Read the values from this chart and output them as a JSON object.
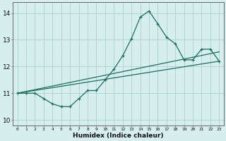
{
  "xlabel": "Humidex (Indice chaleur)",
  "xlim": [
    -0.5,
    23.5
  ],
  "ylim": [
    9.8,
    14.4
  ],
  "xticks": [
    0,
    1,
    2,
    3,
    4,
    5,
    6,
    7,
    8,
    9,
    10,
    11,
    12,
    13,
    14,
    15,
    16,
    17,
    18,
    19,
    20,
    21,
    22,
    23
  ],
  "yticks": [
    10,
    11,
    12,
    13,
    14
  ],
  "background_color": "#d6eeee",
  "grid_color": "#b0d4d4",
  "line_color": "#1a6e5e",
  "data_x": [
    0,
    1,
    2,
    3,
    4,
    5,
    6,
    7,
    8,
    9,
    10,
    11,
    12,
    13,
    14,
    15,
    16,
    17,
    18,
    19,
    20,
    21,
    22,
    23
  ],
  "data_y": [
    11.0,
    11.0,
    11.0,
    10.8,
    10.6,
    10.5,
    10.5,
    10.8,
    11.1,
    11.1,
    11.5,
    11.9,
    12.4,
    13.05,
    13.85,
    14.08,
    13.6,
    13.1,
    12.85,
    12.25,
    12.25,
    12.65,
    12.65,
    12.2
  ],
  "trend1_x": [
    0,
    23
  ],
  "trend1_y": [
    11.0,
    12.2
  ],
  "trend2_x": [
    0,
    23
  ],
  "trend2_y": [
    11.0,
    12.55
  ]
}
